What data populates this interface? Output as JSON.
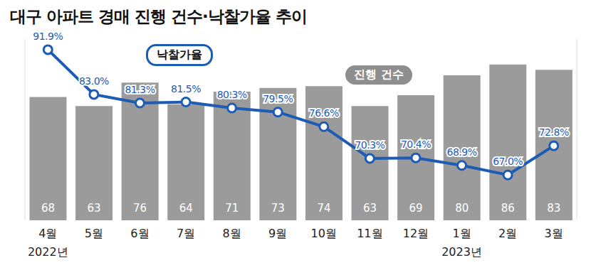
{
  "chart_data": {
    "type": "bar",
    "title": "대구 아파트 경매 진행 건수·낙찰가율 추이",
    "categories": [
      "4월",
      "5월",
      "6월",
      "7월",
      "8월",
      "9월",
      "10월",
      "11월",
      "12월",
      "1월",
      "2월",
      "3월"
    ],
    "series": [
      {
        "name": "진행 건수",
        "type": "bar",
        "color": "#9b9b9b",
        "values": [
          68,
          63,
          76,
          64,
          71,
          73,
          74,
          63,
          69,
          80,
          86,
          83
        ]
      },
      {
        "name": "낙찰가율",
        "type": "line",
        "axis": "y2",
        "color": "#1d5bb4",
        "marker": "circle",
        "values": [
          91.9,
          83.0,
          81.3,
          81.5,
          80.3,
          79.5,
          76.6,
          70.3,
          70.4,
          68.9,
          67.0,
          72.8
        ],
        "value_labels": [
          "91.9%",
          "83.0%",
          "81.3%",
          "81.5%",
          "80.3%",
          "79.5%",
          "76.6%",
          "70.3%",
          "70.4%",
          "68.9%",
          "67.0%",
          "72.8%"
        ]
      }
    ],
    "annotations": [
      {
        "text": "2022년",
        "category": "4월"
      },
      {
        "text": "2023년",
        "category": "1월"
      }
    ],
    "ylim": [
      0,
      100
    ],
    "yticks": [],
    "y2lim": [
      58,
      94
    ],
    "y2ticks": [],
    "tick_labels": false,
    "grid": false,
    "data_labels": true
  }
}
